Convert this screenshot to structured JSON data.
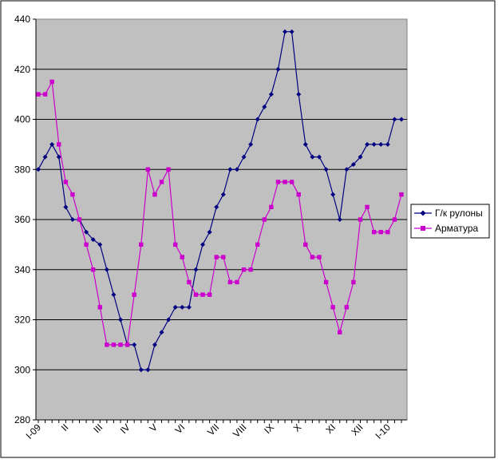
{
  "chart_data": {
    "type": "line",
    "ylim": [
      280,
      440
    ],
    "y_ticks": [
      "280",
      "300",
      "320",
      "340",
      "360",
      "380",
      "400",
      "420",
      "440"
    ],
    "x_tick_labels": [
      {
        "label": "I-09",
        "index": 0
      },
      {
        "label": "II",
        "index": 4
      },
      {
        "label": "III",
        "index": 9
      },
      {
        "label": "IV",
        "index": 13
      },
      {
        "label": "V",
        "index": 17
      },
      {
        "label": "VI",
        "index": 21
      },
      {
        "label": "VII",
        "index": 26
      },
      {
        "label": "VIII",
        "index": 30
      },
      {
        "label": "IX",
        "index": 34
      },
      {
        "label": "X",
        "index": 38
      },
      {
        "label": "XI",
        "index": 43
      },
      {
        "label": "XII",
        "index": 47
      },
      {
        "label": "I-10",
        "index": 51
      }
    ],
    "grid": true,
    "background_color": "#c0c0c0",
    "legend_position": "right",
    "series": [
      {
        "name": "Г/к рулоны",
        "color": "#000080",
        "marker": "diamond",
        "values": [
          380,
          385,
          390,
          385,
          365,
          360,
          360,
          355,
          352,
          350,
          340,
          330,
          320,
          310,
          310,
          300,
          300,
          310,
          315,
          320,
          325,
          325,
          325,
          340,
          350,
          355,
          365,
          370,
          380,
          380,
          385,
          390,
          400,
          405,
          410,
          420,
          435,
          435,
          410,
          390,
          385,
          385,
          380,
          370,
          360,
          380,
          382,
          385,
          390,
          390,
          390,
          390,
          400,
          400
        ]
      },
      {
        "name": "Арматура",
        "color": "#cc00cc",
        "marker": "square",
        "values": [
          410,
          410,
          415,
          390,
          375,
          370,
          360,
          350,
          340,
          325,
          310,
          310,
          310,
          310,
          330,
          350,
          380,
          370,
          375,
          380,
          350,
          345,
          335,
          330,
          330,
          330,
          345,
          345,
          335,
          335,
          340,
          340,
          350,
          360,
          365,
          375,
          375,
          375,
          370,
          350,
          345,
          345,
          335,
          325,
          315,
          325,
          335,
          360,
          365,
          355,
          355,
          355,
          360,
          370
        ]
      }
    ]
  }
}
